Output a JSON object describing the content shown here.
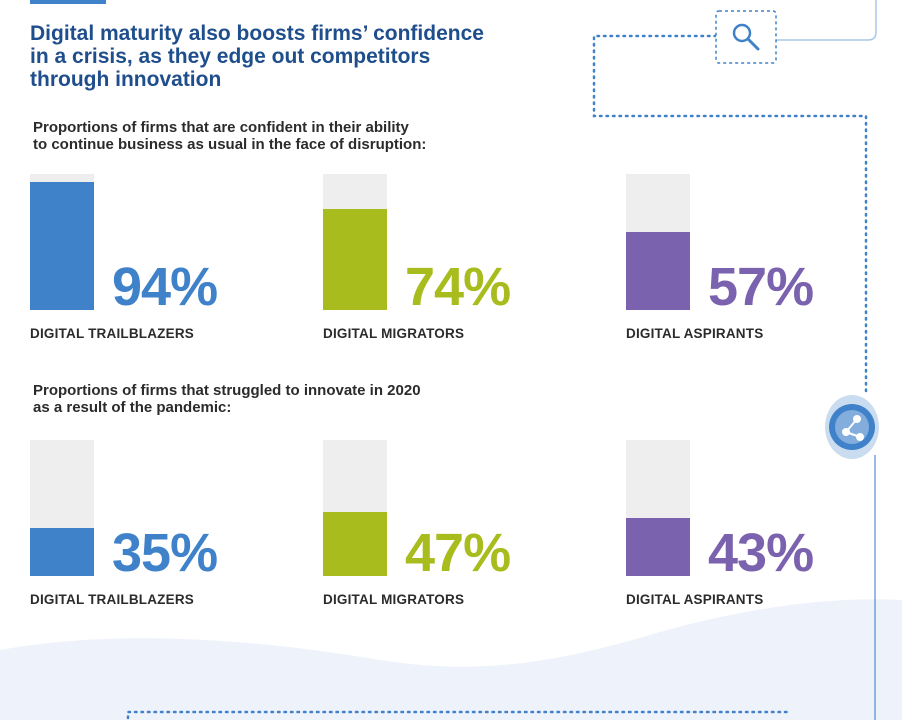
{
  "headline": {
    "lines": [
      "Digital maturity also boosts firms’ confidence",
      "in a crisis, as they edge out competitors",
      "through innovation"
    ]
  },
  "colors": {
    "headline": "#1f4e8c",
    "track": "#eeeeee",
    "trailblazers": "#3f82c9",
    "migrators": "#a9bc1d",
    "aspirants": "#7b62ae",
    "dotted_line": "#3f82c9"
  },
  "icons": [
    "search-icon",
    "network-icon"
  ],
  "chart_data": [
    {
      "type": "bar",
      "title": "Proportions of firms that are confident in their ability to continue business as usual in the face of disruption:",
      "title_lines": [
        "Proportions of firms that are confident in their ability",
        "to continue business as usual in the face of disruption:"
      ],
      "categories": [
        "DIGITAL TRAILBLAZERS",
        "DIGITAL MIGRATORS",
        "DIGITAL ASPIRANTS"
      ],
      "values": [
        94,
        74,
        57
      ],
      "labels": [
        "94%",
        "74%",
        "57%"
      ],
      "unit": "%",
      "ylim": [
        0,
        100
      ],
      "grid": false
    },
    {
      "type": "bar",
      "title": "Proportions of firms that struggled to innovate in 2020 as a result of the pandemic:",
      "title_lines": [
        "Proportions of firms that struggled to innovate in 2020",
        "as a result of the pandemic:"
      ],
      "categories": [
        "DIGITAL TRAILBLAZERS",
        "DIGITAL MIGRATORS",
        "DIGITAL ASPIRANTS"
      ],
      "values": [
        35,
        47,
        43
      ],
      "labels": [
        "35%",
        "47%",
        "43%"
      ],
      "unit": "%",
      "ylim": [
        0,
        100
      ],
      "grid": false
    }
  ]
}
